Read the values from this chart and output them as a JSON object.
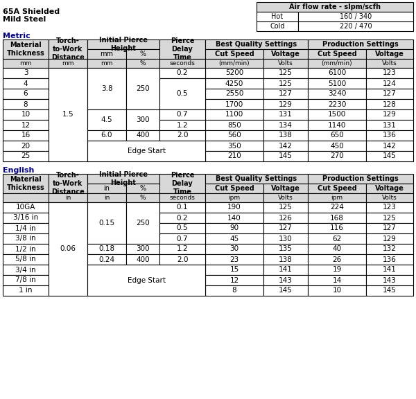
{
  "title_line1": "65A Shielded",
  "title_line2": "Mild Steel",
  "air_flow_title": "Air flow rate - slpm/scfh",
  "air_flow_hot_label": "Hot",
  "air_flow_hot_val": "160 / 340",
  "air_flow_cold_label": "Cold",
  "air_flow_cold_val": "220 / 470",
  "metric_label": "Metric",
  "english_label": "English",
  "bg_color": "#ffffff",
  "header_fill": "#d8d8d8",
  "border_color": "#000000",
  "text_color": "#000000",
  "blue_color": "#00008B",
  "metric_rows": [
    [
      "3",
      "",
      "",
      "",
      "0.2",
      "5200",
      "125",
      "6100",
      "123"
    ],
    [
      "4",
      "",
      "3.8",
      "250",
      "",
      "4250",
      "125",
      "5100",
      "124"
    ],
    [
      "6",
      "1.5",
      "",
      "",
      "0.5",
      "2550",
      "127",
      "3240",
      "127"
    ],
    [
      "8",
      "",
      "",
      "",
      "",
      "1700",
      "129",
      "2230",
      "128"
    ],
    [
      "10",
      "",
      "4.5",
      "300",
      "0.7",
      "1100",
      "131",
      "1500",
      "129"
    ],
    [
      "12",
      "",
      "",
      "",
      "1.2",
      "850",
      "134",
      "1140",
      "131"
    ],
    [
      "16",
      "",
      "6.0",
      "400",
      "2.0",
      "560",
      "138",
      "650",
      "136"
    ],
    [
      "20",
      "",
      "",
      "",
      "",
      "350",
      "142",
      "450",
      "142"
    ],
    [
      "25",
      "",
      "",
      "",
      "",
      "210",
      "145",
      "270",
      "145"
    ]
  ],
  "english_rows": [
    [
      "10GA",
      "",
      "",
      "",
      "0.1",
      "190",
      "125",
      "224",
      "123"
    ],
    [
      "3/16 in",
      "",
      "0.15",
      "250",
      "0.2",
      "140",
      "126",
      "168",
      "125"
    ],
    [
      "1/4 in",
      "0.06",
      "",
      "",
      "0.5",
      "90",
      "127",
      "116",
      "127"
    ],
    [
      "3/8 in",
      "",
      "",
      "",
      "0.7",
      "45",
      "130",
      "62",
      "129"
    ],
    [
      "1/2 in",
      "",
      "0.18",
      "300",
      "1.2",
      "30",
      "135",
      "40",
      "132"
    ],
    [
      "5/8 in",
      "",
      "0.24",
      "400",
      "2.0",
      "23",
      "138",
      "26",
      "136"
    ],
    [
      "3/4 in",
      "",
      "",
      "",
      "",
      "15",
      "141",
      "19",
      "141"
    ],
    [
      "7/8 in",
      "",
      "",
      "",
      "",
      "12",
      "143",
      "14",
      "143"
    ],
    [
      "1 in",
      "",
      "",
      "",
      "",
      "8",
      "145",
      "10",
      "145"
    ]
  ]
}
